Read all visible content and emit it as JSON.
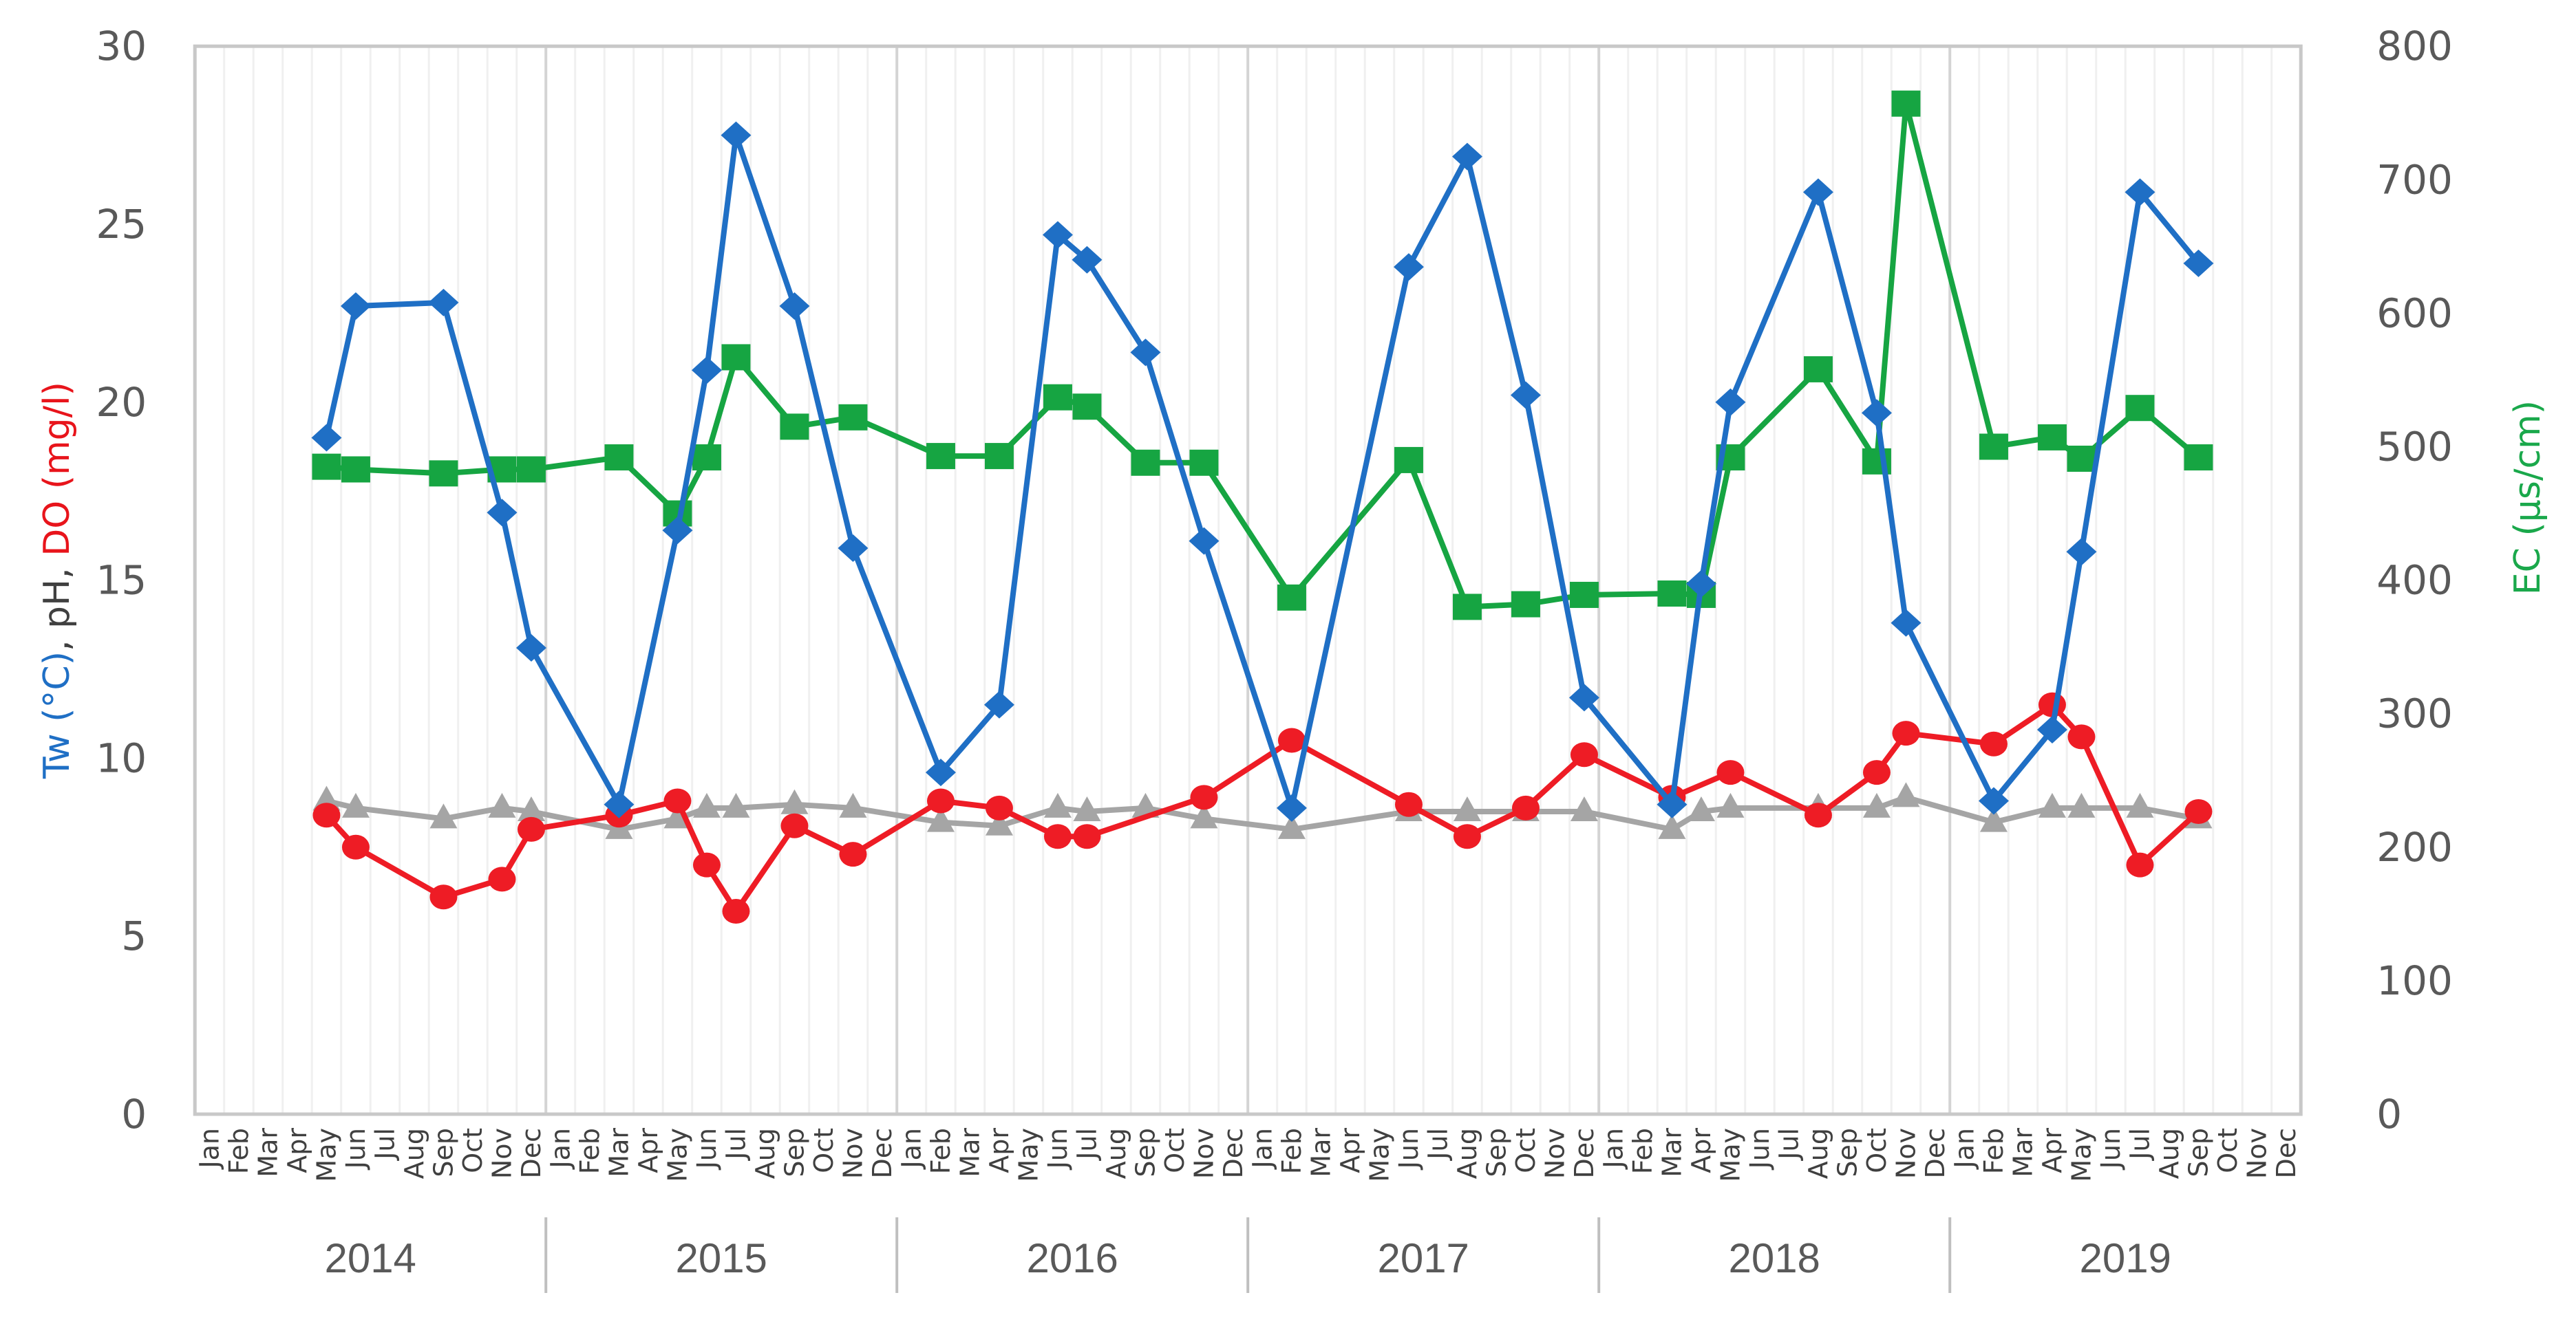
{
  "chart_data": {
    "type": "line",
    "title": "",
    "xlabel": "",
    "ylabel": "Tw (°C), pH, DO (mg/l)",
    "ylabel_parts": [
      {
        "text": "Tw (°C)",
        "color": "#1f6fc5"
      },
      {
        "text": ", pH, ",
        "color": "#404040"
      },
      {
        "text": "DO (mg/l)",
        "color": "#e8141b"
      }
    ],
    "y2label": "EC (µs/cm)",
    "y2label_color": "#1aa84b",
    "ylim": [
      0,
      30
    ],
    "y2lim": [
      0,
      800
    ],
    "yticks": [
      0,
      5,
      10,
      15,
      20,
      25,
      30
    ],
    "y2ticks": [
      0,
      100,
      200,
      300,
      400,
      500,
      600,
      700,
      800
    ],
    "grid": "vertical month gridlines",
    "legend": "none",
    "years": [
      "2014",
      "2015",
      "2016",
      "2017",
      "2018",
      "2019"
    ],
    "months": [
      "Jan",
      "Feb",
      "Mar",
      "Apr",
      "May",
      "Jun",
      "Jul",
      "Aug",
      "Sep",
      "Oct",
      "Nov",
      "Dec"
    ],
    "series": [
      {
        "name": "Tw (°C)",
        "axis": "left",
        "color": "#1f6fc5",
        "marker": "diamond",
        "points": [
          [
            "2014-May",
            19.0
          ],
          [
            "2014-Jun",
            22.7
          ],
          [
            "2014-Sep",
            22.8
          ],
          [
            "2014-Nov",
            16.9
          ],
          [
            "2014-Dec",
            13.1
          ],
          [
            "2015-Mar",
            8.7
          ],
          [
            "2015-May",
            16.4
          ],
          [
            "2015-Jun",
            20.9
          ],
          [
            "2015-Jul",
            27.5
          ],
          [
            "2015-Sep",
            22.7
          ],
          [
            "2015-Nov",
            15.9
          ],
          [
            "2016-Feb",
            9.6
          ],
          [
            "2016-Apr",
            11.5
          ],
          [
            "2016-Jun",
            24.7
          ],
          [
            "2016-Jul",
            24.0
          ],
          [
            "2016-Sep",
            21.4
          ],
          [
            "2016-Nov",
            16.1
          ],
          [
            "2017-Feb",
            8.6
          ],
          [
            "2017-Jun",
            23.8
          ],
          [
            "2017-Aug",
            26.9
          ],
          [
            "2017-Oct",
            20.2
          ],
          [
            "2017-Dec",
            11.7
          ],
          [
            "2018-Mar",
            8.7
          ],
          [
            "2018-Apr",
            14.9
          ],
          [
            "2018-May",
            20.0
          ],
          [
            "2018-Aug",
            25.9
          ],
          [
            "2018-Oct",
            19.7
          ],
          [
            "2018-Nov",
            13.8
          ],
          [
            "2019-Feb",
            8.8
          ],
          [
            "2019-Apr",
            10.8
          ],
          [
            "2019-May",
            15.8
          ],
          [
            "2019-Jul",
            25.9
          ],
          [
            "2019-Sep",
            23.9
          ]
        ]
      },
      {
        "name": "pH",
        "axis": "left",
        "color": "#a5a5a5",
        "marker": "triangle",
        "points": [
          [
            "2014-May",
            8.8
          ],
          [
            "2014-Jun",
            8.6
          ],
          [
            "2014-Sep",
            8.3
          ],
          [
            "2014-Nov",
            8.6
          ],
          [
            "2014-Dec",
            8.5
          ],
          [
            "2015-Mar",
            8.0
          ],
          [
            "2015-May",
            8.3
          ],
          [
            "2015-Jun",
            8.6
          ],
          [
            "2015-Jul",
            8.6
          ],
          [
            "2015-Sep",
            8.7
          ],
          [
            "2015-Nov",
            8.6
          ],
          [
            "2016-Feb",
            8.2
          ],
          [
            "2016-Apr",
            8.1
          ],
          [
            "2016-Jun",
            8.6
          ],
          [
            "2016-Jul",
            8.5
          ],
          [
            "2016-Sep",
            8.6
          ],
          [
            "2016-Nov",
            8.3
          ],
          [
            "2017-Feb",
            8.0
          ],
          [
            "2017-Jun",
            8.5
          ],
          [
            "2017-Aug",
            8.5
          ],
          [
            "2017-Oct",
            8.5
          ],
          [
            "2017-Dec",
            8.5
          ],
          [
            "2018-Mar",
            8.0
          ],
          [
            "2018-Apr",
            8.5
          ],
          [
            "2018-May",
            8.6
          ],
          [
            "2018-Aug",
            8.6
          ],
          [
            "2018-Oct",
            8.6
          ],
          [
            "2018-Nov",
            8.9
          ],
          [
            "2019-Feb",
            8.2
          ],
          [
            "2019-Apr",
            8.6
          ],
          [
            "2019-May",
            8.6
          ],
          [
            "2019-Jul",
            8.6
          ],
          [
            "2019-Sep",
            8.3
          ]
        ]
      },
      {
        "name": "DO (mg/l)",
        "axis": "left",
        "color": "#ee1c25",
        "marker": "circle",
        "points": [
          [
            "2014-May",
            8.4
          ],
          [
            "2014-Jun",
            7.5
          ],
          [
            "2014-Sep",
            6.1
          ],
          [
            "2014-Nov",
            6.6
          ],
          [
            "2014-Dec",
            8.0
          ],
          [
            "2015-Mar",
            8.4
          ],
          [
            "2015-May",
            8.8
          ],
          [
            "2015-Jun",
            7.0
          ],
          [
            "2015-Jul",
            5.7
          ],
          [
            "2015-Sep",
            8.1
          ],
          [
            "2015-Nov",
            7.3
          ],
          [
            "2016-Feb",
            8.8
          ],
          [
            "2016-Apr",
            8.6
          ],
          [
            "2016-Jun",
            7.8
          ],
          [
            "2016-Jul",
            7.8
          ],
          [
            "2016-Nov",
            8.9
          ],
          [
            "2017-Feb",
            10.5
          ],
          [
            "2017-Jun",
            8.7
          ],
          [
            "2017-Aug",
            7.8
          ],
          [
            "2017-Oct",
            8.6
          ],
          [
            "2017-Dec",
            10.1
          ],
          [
            "2018-Mar",
            8.9
          ],
          [
            "2018-May",
            9.6
          ],
          [
            "2018-Aug",
            8.4
          ],
          [
            "2018-Oct",
            9.6
          ],
          [
            "2018-Nov",
            10.7
          ],
          [
            "2019-Feb",
            10.4
          ],
          [
            "2019-Apr",
            11.5
          ],
          [
            "2019-May",
            10.6
          ],
          [
            "2019-Jul",
            7.0
          ],
          [
            "2019-Sep",
            8.5
          ]
        ]
      },
      {
        "name": "EC (µs/cm)",
        "axis": "right",
        "color": "#16a542",
        "marker": "square",
        "points": [
          [
            "2014-May",
            485
          ],
          [
            "2014-Jun",
            483
          ],
          [
            "2014-Sep",
            480
          ],
          [
            "2014-Nov",
            483
          ],
          [
            "2014-Dec",
            483
          ],
          [
            "2015-Mar",
            492
          ],
          [
            "2015-May",
            450
          ],
          [
            "2015-Jun",
            492
          ],
          [
            "2015-Jul",
            567
          ],
          [
            "2015-Sep",
            515
          ],
          [
            "2015-Nov",
            522
          ],
          [
            "2016-Feb",
            493
          ],
          [
            "2016-Apr",
            493
          ],
          [
            "2016-Jun",
            537
          ],
          [
            "2016-Jul",
            530
          ],
          [
            "2016-Sep",
            488
          ],
          [
            "2016-Nov",
            488
          ],
          [
            "2017-Feb",
            387
          ],
          [
            "2017-Jun",
            490
          ],
          [
            "2017-Aug",
            380
          ],
          [
            "2017-Oct",
            382
          ],
          [
            "2017-Dec",
            389
          ],
          [
            "2018-Mar",
            390
          ],
          [
            "2018-Apr",
            389
          ],
          [
            "2018-May",
            492
          ],
          [
            "2018-Aug",
            558
          ],
          [
            "2018-Oct",
            489
          ],
          [
            "2018-Nov",
            757
          ],
          [
            "2019-Feb",
            500
          ],
          [
            "2019-Apr",
            507
          ],
          [
            "2019-May",
            491
          ],
          [
            "2019-Jul",
            529
          ],
          [
            "2019-Sep",
            492
          ]
        ]
      }
    ]
  }
}
